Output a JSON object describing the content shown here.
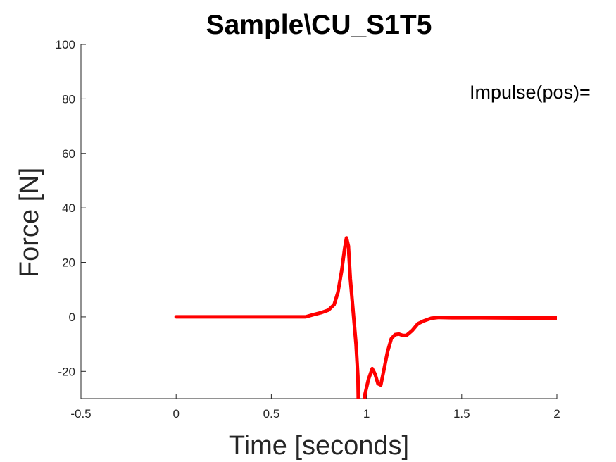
{
  "chart_data": {
    "type": "line",
    "title": "Sample\\CU_S1T5",
    "xlabel": "Time [seconds]",
    "ylabel": "Force [N]",
    "xlim": [
      -0.5,
      2
    ],
    "ylim": [
      -30,
      100
    ],
    "xticks": [
      -0.5,
      0,
      0.5,
      1,
      1.5,
      2
    ],
    "xtick_labels": [
      "-0.5",
      "0",
      "0.5",
      "1",
      "1.5",
      "2"
    ],
    "yticks": [
      -20,
      0,
      20,
      40,
      60,
      80,
      100
    ],
    "ytick_labels": [
      "-20",
      "0",
      "20",
      "40",
      "60",
      "80",
      "100"
    ],
    "grid": false,
    "annotation": "Impulse(pos)=",
    "series": [
      {
        "color": "#ff0000",
        "x": [
          0,
          0.1,
          0.2,
          0.3,
          0.4,
          0.5,
          0.6,
          0.68,
          0.72,
          0.76,
          0.8,
          0.83,
          0.85,
          0.87,
          0.885,
          0.895,
          0.905,
          0.915,
          0.925,
          0.935,
          0.945,
          0.955,
          0.96,
          0.975,
          0.99,
          1.01,
          1.03,
          1.045,
          1.06,
          1.075,
          1.09,
          1.11,
          1.13,
          1.15,
          1.17,
          1.19,
          1.21,
          1.24,
          1.27,
          1.3,
          1.34,
          1.38,
          1.45,
          1.6,
          1.8,
          2.0
        ],
        "y": [
          0,
          0,
          0,
          0,
          0,
          0,
          0,
          0,
          0.8,
          1.5,
          2.5,
          4.5,
          9,
          17,
          25,
          29,
          26,
          14,
          6,
          -2,
          -10,
          -22,
          -45,
          -45,
          -29,
          -23,
          -19,
          -21,
          -24.5,
          -25,
          -20,
          -13,
          -8,
          -6.5,
          -6.3,
          -6.8,
          -6.8,
          -5,
          -2.5,
          -1.5,
          -0.5,
          -0.2,
          -0.3,
          -0.3,
          -0.4,
          -0.4
        ]
      }
    ]
  }
}
